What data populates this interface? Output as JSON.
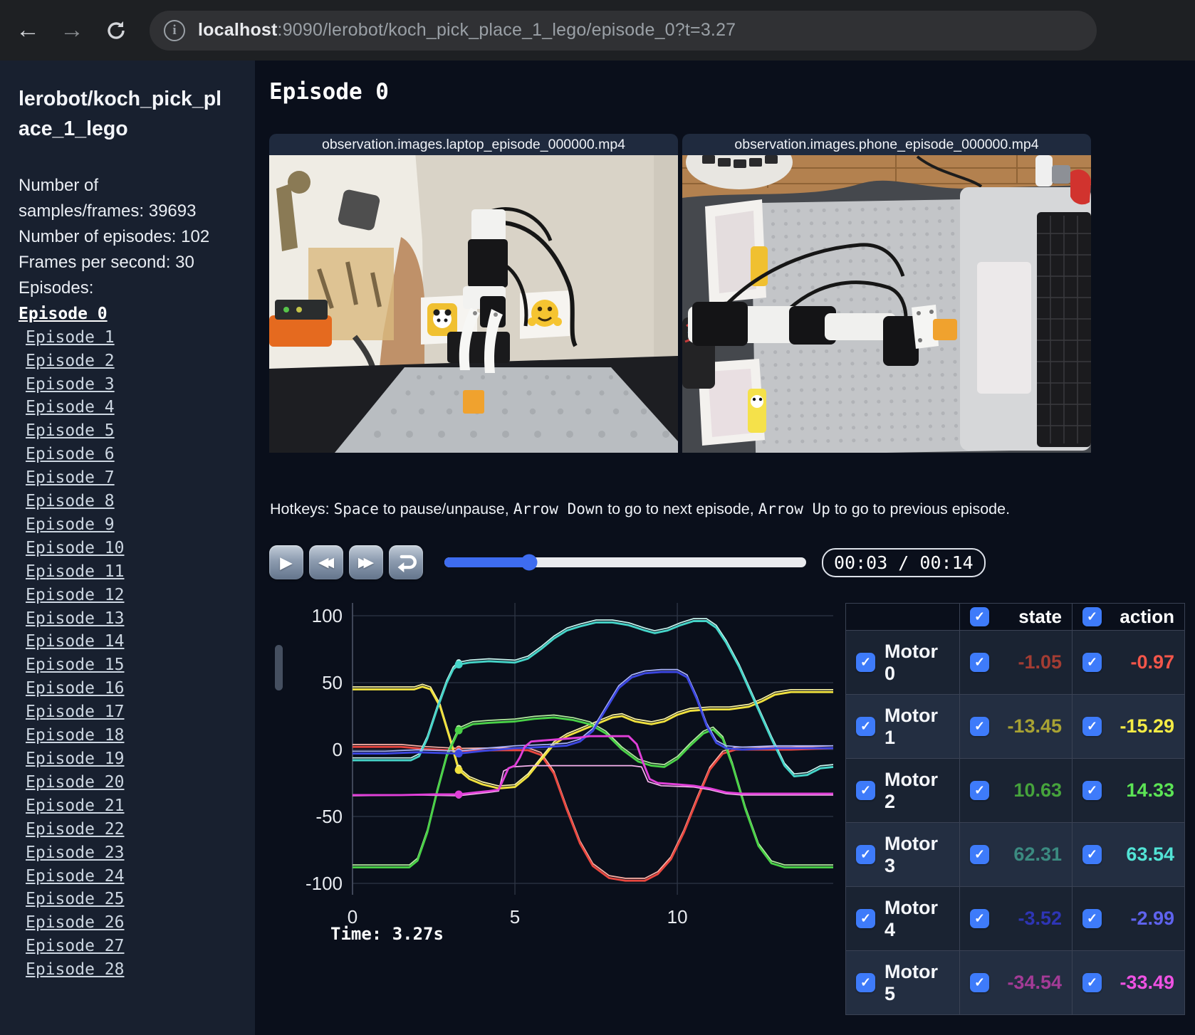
{
  "browser": {
    "url_host": "localhost",
    "url_rest": ":9090/lerobot/koch_pick_place_1_lego/episode_0?t=3.27"
  },
  "sidebar": {
    "title": "lerobot/koch_pick_place_1_lego",
    "stats": [
      "Number of samples/frames: 39693",
      "Number of episodes: 102",
      "Frames per second: 30"
    ],
    "episodes_heading": "Episodes:",
    "current_episode": "Episode 0",
    "episodes": [
      "Episode 0",
      "Episode 1",
      "Episode 2",
      "Episode 3",
      "Episode 4",
      "Episode 5",
      "Episode 6",
      "Episode 7",
      "Episode 8",
      "Episode 9",
      "Episode 10",
      "Episode 11",
      "Episode 12",
      "Episode 13",
      "Episode 14",
      "Episode 15",
      "Episode 16",
      "Episode 17",
      "Episode 18",
      "Episode 19",
      "Episode 20",
      "Episode 21",
      "Episode 22",
      "Episode 23",
      "Episode 24",
      "Episode 25",
      "Episode 26",
      "Episode 27",
      "Episode 28"
    ]
  },
  "main": {
    "episode_title": "Episode 0",
    "videos": [
      {
        "label": "observation.images.laptop_episode_000000.mp4"
      },
      {
        "label": "observation.images.phone_episode_000000.mp4"
      }
    ],
    "hotkeys": {
      "prefix": "Hotkeys: ",
      "parts": [
        {
          "key": "Space",
          "text": " to pause/unpause, "
        },
        {
          "key": "Arrow Down",
          "text": " to go to next episode, "
        },
        {
          "key": "Arrow Up",
          "text": " to go to previous episode."
        }
      ]
    },
    "player": {
      "time": "00:03 / 00:14",
      "progress_pct": 23.4
    }
  },
  "panel": {
    "state_label": "state",
    "action_label": "action",
    "checkbox_color": "#3e7bfa",
    "motors": [
      {
        "name": "Motor 0",
        "state": "-1.05",
        "action": "-0.97",
        "state_color": "#a33c33",
        "action_color": "#f4564a"
      },
      {
        "name": "Motor 1",
        "state": "-13.45",
        "action": "-15.29",
        "state_color": "#a8a233",
        "action_color": "#f5ec45"
      },
      {
        "name": "Motor 2",
        "state": "10.63",
        "action": "14.33",
        "state_color": "#46a33c",
        "action_color": "#5ce455"
      },
      {
        "name": "Motor 3",
        "state": "62.31",
        "action": "63.54",
        "state_color": "#3b8a80",
        "action_color": "#52e3d5"
      },
      {
        "name": "Motor 4",
        "state": "-3.52",
        "action": "-2.99",
        "state_color": "#2e35b5",
        "action_color": "#5f63ee"
      },
      {
        "name": "Motor 5",
        "state": "-34.54",
        "action": "-33.49",
        "state_color": "#a33b96",
        "action_color": "#ee52e2"
      }
    ]
  },
  "chart_data": {
    "type": "line",
    "title": "",
    "xlabel": "",
    "ylabel": "",
    "x_ticks": [
      0,
      5,
      10
    ],
    "y_ticks": [
      100,
      50,
      0,
      -50,
      -100
    ],
    "xlim": [
      0,
      14.8
    ],
    "ylim": [
      -112,
      112
    ],
    "grid": true,
    "legend_position": "none",
    "current_t": 3.27,
    "time_label": "Time: 3.27s",
    "series": [
      {
        "name": "Motor 0",
        "color": "#e8473f",
        "pale": "#ffb3a7",
        "points": [
          [
            0,
            2
          ],
          [
            1.5,
            2
          ],
          [
            2.2,
            0.5
          ],
          [
            3.27,
            -0.97
          ],
          [
            4.5,
            -0.5
          ],
          [
            5.4,
            -0.5
          ],
          [
            5.8,
            -4
          ],
          [
            6.2,
            -18
          ],
          [
            6.6,
            -45
          ],
          [
            7.0,
            -70
          ],
          [
            7.4,
            -87
          ],
          [
            7.9,
            -96
          ],
          [
            8.4,
            -98
          ],
          [
            9.0,
            -98
          ],
          [
            9.4,
            -93
          ],
          [
            9.8,
            -82
          ],
          [
            10.2,
            -62
          ],
          [
            10.6,
            -38
          ],
          [
            11.0,
            -15
          ],
          [
            11.4,
            -3
          ],
          [
            11.8,
            0
          ],
          [
            12.5,
            0
          ],
          [
            13.5,
            0
          ],
          [
            14.8,
            1
          ]
        ]
      },
      {
        "name": "Motor 1",
        "color": "#f0e13d",
        "pale": "#fdf6a3",
        "points": [
          [
            0,
            45
          ],
          [
            1.9,
            45
          ],
          [
            2.15,
            47
          ],
          [
            2.4,
            45
          ],
          [
            2.7,
            32
          ],
          [
            3.0,
            8
          ],
          [
            3.27,
            -15.29
          ],
          [
            3.6,
            -22
          ],
          [
            4.0,
            -26
          ],
          [
            4.5,
            -29
          ],
          [
            5.0,
            -28
          ],
          [
            5.4,
            -20
          ],
          [
            5.8,
            -8
          ],
          [
            6.2,
            4
          ],
          [
            6.6,
            10
          ],
          [
            7.0,
            14
          ],
          [
            7.5,
            19
          ],
          [
            8.0,
            24
          ],
          [
            8.3,
            25
          ],
          [
            8.7,
            21
          ],
          [
            9.2,
            19
          ],
          [
            9.6,
            21
          ],
          [
            10.0,
            26
          ],
          [
            10.4,
            29
          ],
          [
            11.0,
            30
          ],
          [
            11.6,
            30
          ],
          [
            12.2,
            32
          ],
          [
            12.6,
            36
          ],
          [
            13.0,
            41
          ],
          [
            13.5,
            43
          ],
          [
            14.8,
            43
          ]
        ]
      },
      {
        "name": "Motor 2",
        "color": "#49d147",
        "pale": "#b5f0a0",
        "points": [
          [
            0,
            -88
          ],
          [
            1.75,
            -88
          ],
          [
            2.0,
            -83
          ],
          [
            2.3,
            -62
          ],
          [
            2.6,
            -32
          ],
          [
            2.9,
            -5
          ],
          [
            3.27,
            14.33
          ],
          [
            3.7,
            19
          ],
          [
            4.2,
            20
          ],
          [
            5.0,
            21
          ],
          [
            5.6,
            23
          ],
          [
            6.2,
            24
          ],
          [
            6.8,
            22
          ],
          [
            7.3,
            19
          ],
          [
            7.8,
            12
          ],
          [
            8.3,
            0
          ],
          [
            8.8,
            -9
          ],
          [
            9.2,
            -12
          ],
          [
            9.6,
            -13
          ],
          [
            10.0,
            -7
          ],
          [
            10.4,
            3
          ],
          [
            10.8,
            12
          ],
          [
            11.1,
            15
          ],
          [
            11.4,
            8
          ],
          [
            11.7,
            -12
          ],
          [
            12.1,
            -45
          ],
          [
            12.5,
            -72
          ],
          [
            12.9,
            -85
          ],
          [
            13.3,
            -88
          ],
          [
            14.8,
            -88
          ]
        ]
      },
      {
        "name": "Motor 3",
        "color": "#45d4c8",
        "pale": "#c9f7f0",
        "points": [
          [
            0,
            -8
          ],
          [
            1.8,
            -8
          ],
          [
            2.05,
            -5
          ],
          [
            2.3,
            8
          ],
          [
            2.6,
            30
          ],
          [
            2.9,
            50
          ],
          [
            3.1,
            60
          ],
          [
            3.27,
            63.54
          ],
          [
            3.6,
            65
          ],
          [
            4.2,
            66
          ],
          [
            5.0,
            65
          ],
          [
            5.4,
            68
          ],
          [
            5.8,
            75
          ],
          [
            6.2,
            83
          ],
          [
            6.6,
            89
          ],
          [
            7.0,
            92
          ],
          [
            7.5,
            95
          ],
          [
            8.0,
            95
          ],
          [
            8.5,
            93
          ],
          [
            9.0,
            89
          ],
          [
            9.3,
            87
          ],
          [
            9.7,
            89
          ],
          [
            10.1,
            93
          ],
          [
            10.5,
            96
          ],
          [
            10.9,
            96
          ],
          [
            11.2,
            91
          ],
          [
            11.5,
            80
          ],
          [
            11.9,
            62
          ],
          [
            12.4,
            35
          ],
          [
            12.9,
            8
          ],
          [
            13.3,
            -12
          ],
          [
            13.6,
            -20
          ],
          [
            14.0,
            -19
          ],
          [
            14.4,
            -14
          ],
          [
            14.8,
            -13
          ]
        ]
      },
      {
        "name": "Motor 4",
        "color": "#3b46e0",
        "pale": "#aab4ff",
        "points": [
          [
            0,
            -3
          ],
          [
            1.0,
            -3
          ],
          [
            2.0,
            -2
          ],
          [
            3.27,
            -2.99
          ],
          [
            4.0,
            -1
          ],
          [
            5.0,
            1
          ],
          [
            6.0,
            2
          ],
          [
            6.6,
            3
          ],
          [
            7.0,
            6
          ],
          [
            7.4,
            14
          ],
          [
            7.8,
            30
          ],
          [
            8.2,
            46
          ],
          [
            8.6,
            54
          ],
          [
            9.0,
            57
          ],
          [
            9.5,
            58
          ],
          [
            10.0,
            58
          ],
          [
            10.3,
            54
          ],
          [
            10.6,
            38
          ],
          [
            10.9,
            18
          ],
          [
            11.2,
            5
          ],
          [
            11.5,
            1
          ],
          [
            12.0,
            0
          ],
          [
            13.0,
            1
          ],
          [
            14.8,
            1
          ]
        ]
      },
      {
        "name": "Motor 5",
        "color": "#e03fd8",
        "pale": "#f7b3ef",
        "points": [
          [
            0,
            -34
          ],
          [
            1.5,
            -34
          ],
          [
            2.5,
            -33.5
          ],
          [
            3.27,
            -33.49
          ],
          [
            3.8,
            -32
          ],
          [
            4.2,
            -31
          ],
          [
            4.5,
            -30
          ],
          [
            4.65,
            -22
          ],
          [
            4.8,
            -14
          ],
          [
            5.0,
            -12
          ],
          [
            5.15,
            -6
          ],
          [
            5.3,
            2
          ],
          [
            5.5,
            6
          ],
          [
            6.0,
            7
          ],
          [
            6.5,
            8
          ],
          [
            7.0,
            9
          ],
          [
            7.3,
            10
          ],
          [
            8.0,
            10
          ],
          [
            8.5,
            10
          ],
          [
            8.75,
            4
          ],
          [
            8.95,
            -10
          ],
          [
            9.15,
            -22
          ],
          [
            9.4,
            -25
          ],
          [
            10.0,
            -26
          ],
          [
            10.5,
            -27
          ],
          [
            11.0,
            -29
          ],
          [
            11.5,
            -32
          ],
          [
            12.0,
            -33
          ],
          [
            13.0,
            -33
          ],
          [
            14.8,
            -33
          ]
        ],
        "state_points": [
          [
            0,
            -34.5
          ],
          [
            2.0,
            -34
          ],
          [
            3.27,
            -34.54
          ],
          [
            4.2,
            -32
          ],
          [
            4.5,
            -31
          ],
          [
            4.65,
            -16
          ],
          [
            4.9,
            -13
          ],
          [
            5.5,
            -12
          ],
          [
            7.0,
            -12
          ],
          [
            8.6,
            -12
          ],
          [
            8.9,
            -13
          ],
          [
            9.1,
            -24
          ],
          [
            9.5,
            -27
          ],
          [
            10.5,
            -28
          ],
          [
            11.0,
            -30
          ],
          [
            11.5,
            -33
          ],
          [
            12.0,
            -34
          ],
          [
            13.0,
            -34
          ],
          [
            14.8,
            -34
          ]
        ]
      }
    ]
  }
}
